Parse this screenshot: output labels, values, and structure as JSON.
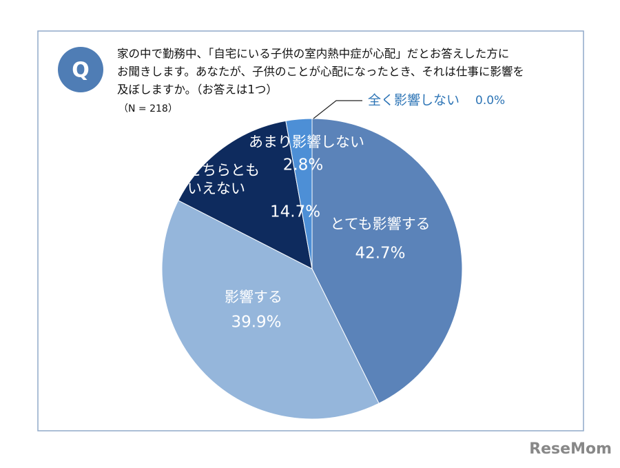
{
  "chart_data": {
    "type": "pie",
    "badge": "Q",
    "question": [
      "家の中で勤務中、「自宅にいる子供の室内熱中症が心配」だとお答えした方に",
      "お聞きします。あなたが、子供のことが心配になったとき、それは仕事に影響を",
      "及ぼしますか。（お答えは1つ）"
    ],
    "sample_size": "（N = 218）",
    "categories": [
      "とても影響する",
      "影響する",
      "どちらとも\nいえない",
      "あまり影響しない",
      "全く影響しない"
    ],
    "values": [
      42.7,
      39.9,
      14.7,
      2.8,
      0.0
    ],
    "value_labels": [
      "42.7%",
      "39.9%",
      "14.7%",
      "2.8%",
      "0.0%"
    ],
    "colors": [
      "#5b83b9",
      "#95b6db",
      "#0e2b5e",
      "#4d8fd6",
      "#2e75b6"
    ],
    "source": "ReseMom"
  }
}
